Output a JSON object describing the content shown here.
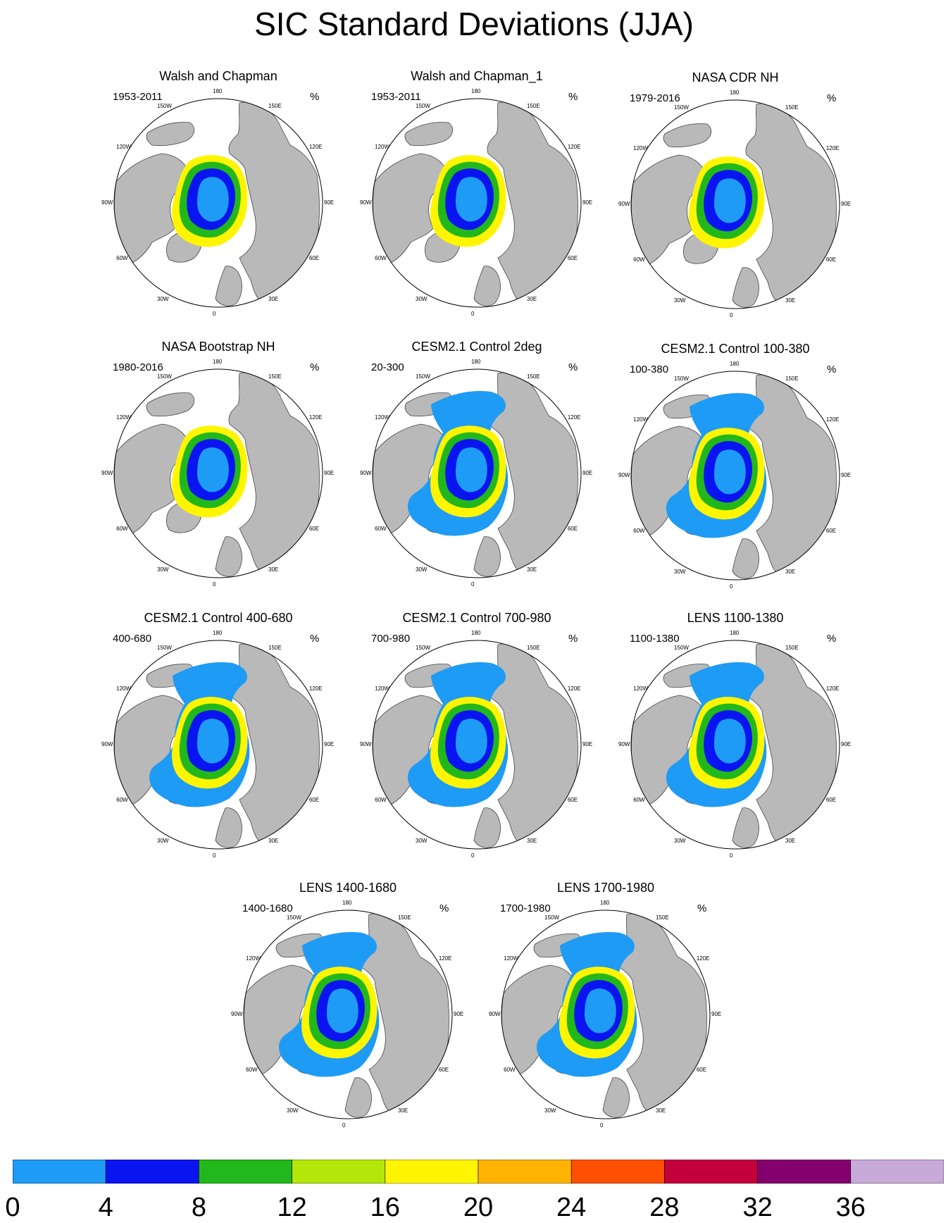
{
  "title": "SIC Standard Deviations (JJA)",
  "chart_data": {
    "type": "heatmap",
    "projection": "north polar stereographic",
    "season": "JJA",
    "unit": "%",
    "longitude_labels": [
      "180",
      "150E",
      "120E",
      "90E",
      "60E",
      "30E",
      "0",
      "30W",
      "60W",
      "90W",
      "120W",
      "150W"
    ],
    "colorbar": {
      "ticks": [
        "0",
        "4",
        "8",
        "12",
        "16",
        "20",
        "24",
        "28",
        "32",
        "36"
      ],
      "colors": [
        "#1e9bf5",
        "#0a14f0",
        "#22b81b",
        "#b4e60a",
        "#fff500",
        "#ffb300",
        "#ff4f00",
        "#c4003c",
        "#84006e",
        "#c8aad8"
      ]
    },
    "panels": [
      {
        "title": "Walsh and Chapman",
        "years": "1953-2011",
        "unit": "%"
      },
      {
        "title": "Walsh and Chapman_1",
        "years": "1953-2011",
        "unit": "%"
      },
      {
        "title": "NASA CDR NH",
        "years": "1979-2016",
        "unit": "%"
      },
      {
        "title": "NASA Bootstrap NH",
        "years": "1980-2016",
        "unit": "%"
      },
      {
        "title": "CESM2.1 Control 2deg",
        "years": "20-300",
        "unit": "%"
      },
      {
        "title": "CESM2.1 Control 100-380",
        "years": "100-380",
        "unit": "%"
      },
      {
        "title": "CESM2.1 Control 400-680",
        "years": "400-680",
        "unit": "%"
      },
      {
        "title": "CESM2.1 Control 700-980",
        "years": "700-980",
        "unit": "%"
      },
      {
        "title": "LENS 1100-1380",
        "years": "1100-1380",
        "unit": "%"
      },
      {
        "title": "LENS 1400-1680",
        "years": "1400-1680",
        "unit": "%"
      },
      {
        "title": "LENS 1700-1980",
        "years": "1700-1980",
        "unit": "%"
      }
    ]
  }
}
